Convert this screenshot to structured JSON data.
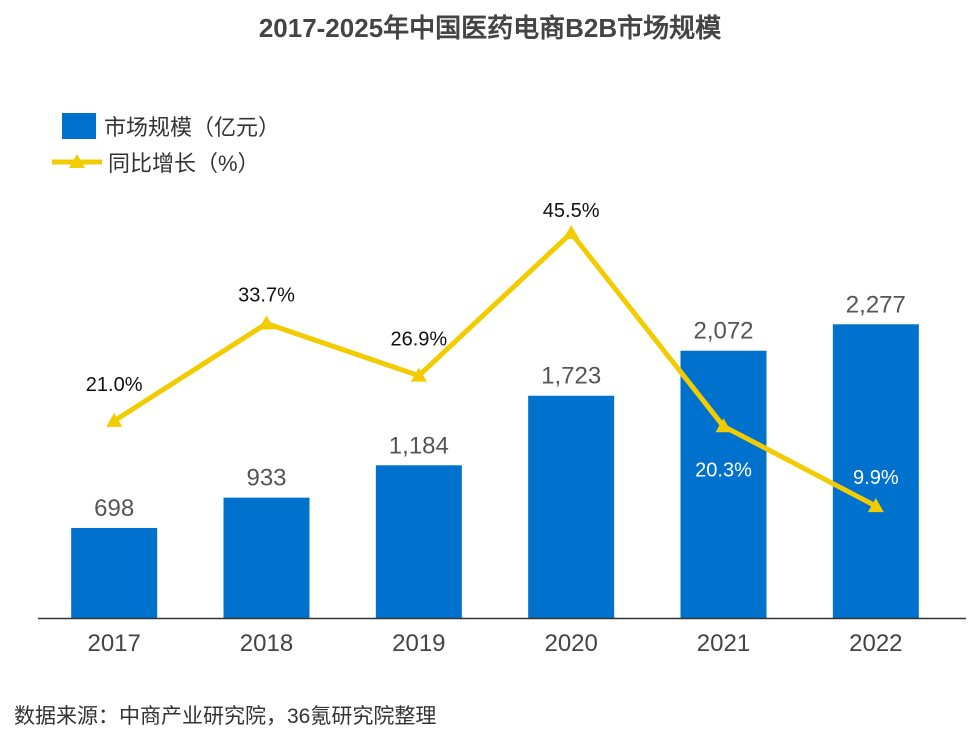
{
  "title": "2017-2025年中国医药电商B2B市场规模",
  "source": "数据来源：中商产业研究院，36氪研究院整理",
  "colors": {
    "bar": "#0072CE",
    "line": "#F2CC00",
    "title": "#444444"
  },
  "chart_data": {
    "type": "bar",
    "title": "2017-2025年中国医药电商B2B市场规模",
    "categories": [
      "2017",
      "2018",
      "2019",
      "2020",
      "2021",
      "2022"
    ],
    "series": [
      {
        "name": "市场规模（亿元）",
        "type": "bar",
        "values": [
          698,
          933,
          1184,
          1723,
          2072,
          2277
        ],
        "labels": [
          "698",
          "933",
          "1,184",
          "1,723",
          "2,072",
          "2,277"
        ]
      },
      {
        "name": "同比增长（%）",
        "type": "line",
        "values": [
          21.0,
          33.7,
          26.9,
          45.5,
          20.3,
          9.9
        ],
        "labels": [
          "21.0%",
          "33.7%",
          "26.9%",
          "45.5%",
          "20.3%",
          "9.9%"
        ]
      }
    ],
    "legend": "top-left",
    "grid": false,
    "xlabel": "",
    "ylabel": ""
  }
}
